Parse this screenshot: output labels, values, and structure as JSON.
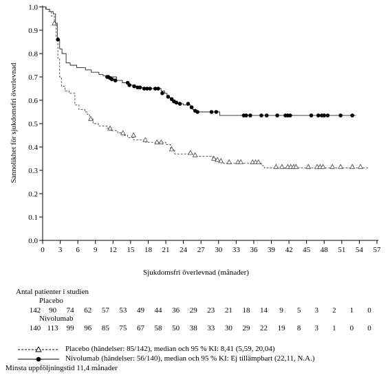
{
  "chart_data": {
    "type": "line",
    "title": "",
    "xlabel": "Sjukdomsfri överlevnad (månader)",
    "ylabel": "Sannolikhet för sjukdomsfri överlevnad",
    "xlim": [
      0,
      57
    ],
    "ylim": [
      0.0,
      1.0
    ],
    "xticks": [
      0,
      3,
      6,
      9,
      12,
      15,
      18,
      21,
      24,
      27,
      30,
      33,
      36,
      39,
      42,
      45,
      48,
      51,
      54,
      57
    ],
    "yticks": [
      "0.0",
      "0.1",
      "0.2",
      "0.3",
      "0.4",
      "0.5",
      "0.6",
      "0.7",
      "0.8",
      "0.9",
      "1.0"
    ],
    "series": [
      {
        "name": "Placebo",
        "line_style": "dashed",
        "marker": "open-triangle",
        "steps": [
          [
            0,
            1.0
          ],
          [
            0.5,
            0.99
          ],
          [
            1,
            0.98
          ],
          [
            1.5,
            0.96
          ],
          [
            2,
            0.93
          ],
          [
            2.3,
            0.87
          ],
          [
            2.6,
            0.78
          ],
          [
            2.9,
            0.7
          ],
          [
            3.2,
            0.66
          ],
          [
            3.8,
            0.64
          ],
          [
            4.5,
            0.63
          ],
          [
            5.5,
            0.58
          ],
          [
            6.2,
            0.56
          ],
          [
            7.2,
            0.55
          ],
          [
            7.6,
            0.54
          ],
          [
            8.0,
            0.52
          ],
          [
            8.6,
            0.5
          ],
          [
            9.5,
            0.49
          ],
          [
            11.0,
            0.48
          ],
          [
            11.6,
            0.47
          ],
          [
            12.8,
            0.46
          ],
          [
            13.6,
            0.45
          ],
          [
            14.5,
            0.44
          ],
          [
            15.5,
            0.43
          ],
          [
            16.5,
            0.43
          ],
          [
            17.6,
            0.42
          ],
          [
            19.0,
            0.42
          ],
          [
            21.0,
            0.41
          ],
          [
            21.8,
            0.39
          ],
          [
            22.5,
            0.37
          ],
          [
            25.5,
            0.37
          ],
          [
            26.0,
            0.36
          ],
          [
            29.0,
            0.35
          ],
          [
            29.8,
            0.34
          ],
          [
            30.5,
            0.33
          ],
          [
            37.3,
            0.32
          ],
          [
            37.8,
            0.31
          ],
          [
            55.5,
            0.31
          ]
        ],
        "censored": [
          [
            2.0,
            0.93
          ],
          [
            8.2,
            0.52
          ],
          [
            11.5,
            0.48
          ],
          [
            13.7,
            0.46
          ],
          [
            15.5,
            0.45
          ],
          [
            17.5,
            0.43
          ],
          [
            19.5,
            0.42
          ],
          [
            20.2,
            0.42
          ],
          [
            22.0,
            0.39
          ],
          [
            25.2,
            0.375
          ],
          [
            26.0,
            0.365
          ],
          [
            29.2,
            0.35
          ],
          [
            29.8,
            0.345
          ],
          [
            30.4,
            0.34
          ],
          [
            31.8,
            0.335
          ],
          [
            33.3,
            0.335
          ],
          [
            33.8,
            0.335
          ],
          [
            35.8,
            0.335
          ],
          [
            36.3,
            0.335
          ],
          [
            36.8,
            0.335
          ],
          [
            39.8,
            0.315
          ],
          [
            40.8,
            0.315
          ],
          [
            41.8,
            0.315
          ],
          [
            42.3,
            0.315
          ],
          [
            42.8,
            0.315
          ],
          [
            43.2,
            0.315
          ],
          [
            45.3,
            0.315
          ],
          [
            46.8,
            0.315
          ],
          [
            47.3,
            0.315
          ],
          [
            47.8,
            0.315
          ],
          [
            49.4,
            0.315
          ],
          [
            50.8,
            0.315
          ],
          [
            52.8,
            0.315
          ],
          [
            54.2,
            0.315
          ]
        ]
      },
      {
        "name": "Nivolumab",
        "line_style": "solid",
        "marker": "filled-circle",
        "steps": [
          [
            0,
            1.0
          ],
          [
            0.6,
            0.99
          ],
          [
            1.2,
            0.98
          ],
          [
            1.8,
            0.97
          ],
          [
            2.2,
            0.93
          ],
          [
            2.5,
            0.86
          ],
          [
            2.9,
            0.82
          ],
          [
            3.3,
            0.8
          ],
          [
            4.0,
            0.76
          ],
          [
            4.7,
            0.75
          ],
          [
            5.8,
            0.74
          ],
          [
            6.6,
            0.74
          ],
          [
            7.3,
            0.73
          ],
          [
            8.3,
            0.72
          ],
          [
            9.6,
            0.71
          ],
          [
            10.3,
            0.705
          ],
          [
            11.2,
            0.7
          ],
          [
            12.6,
            0.685
          ],
          [
            13.6,
            0.675
          ],
          [
            14.6,
            0.665
          ],
          [
            15.5,
            0.66
          ],
          [
            16.5,
            0.655
          ],
          [
            17.5,
            0.65
          ],
          [
            18.4,
            0.65
          ],
          [
            20.2,
            0.64
          ],
          [
            20.8,
            0.63
          ],
          [
            21.2,
            0.62
          ],
          [
            21.6,
            0.61
          ],
          [
            22.2,
            0.6
          ],
          [
            22.6,
            0.59
          ],
          [
            23.0,
            0.585
          ],
          [
            24.0,
            0.58
          ],
          [
            25.2,
            0.57
          ],
          [
            25.6,
            0.56
          ],
          [
            26.0,
            0.55
          ],
          [
            30.2,
            0.535
          ],
          [
            53.4,
            0.535
          ]
        ],
        "censored": [
          [
            2.6,
            0.86
          ],
          [
            11.0,
            0.7
          ],
          [
            11.2,
            0.7
          ],
          [
            11.5,
            0.695
          ],
          [
            11.8,
            0.69
          ],
          [
            12.4,
            0.685
          ],
          [
            14.5,
            0.675
          ],
          [
            14.8,
            0.665
          ],
          [
            15.6,
            0.66
          ],
          [
            16.2,
            0.655
          ],
          [
            16.6,
            0.655
          ],
          [
            17.3,
            0.65
          ],
          [
            17.8,
            0.65
          ],
          [
            18.3,
            0.65
          ],
          [
            19.2,
            0.65
          ],
          [
            19.7,
            0.65
          ],
          [
            20.4,
            0.63
          ],
          [
            21.4,
            0.615
          ],
          [
            22.0,
            0.605
          ],
          [
            22.4,
            0.595
          ],
          [
            22.8,
            0.59
          ],
          [
            23.4,
            0.585
          ],
          [
            24.8,
            0.585
          ],
          [
            25.4,
            0.57
          ],
          [
            26.0,
            0.555
          ],
          [
            26.4,
            0.55
          ],
          [
            28.8,
            0.55
          ],
          [
            29.6,
            0.55
          ],
          [
            34.3,
            0.535
          ],
          [
            34.7,
            0.535
          ],
          [
            35.4,
            0.535
          ],
          [
            37.3,
            0.535
          ],
          [
            38.2,
            0.535
          ],
          [
            40.0,
            0.535
          ],
          [
            41.4,
            0.535
          ],
          [
            41.8,
            0.535
          ],
          [
            42.2,
            0.535
          ],
          [
            45.8,
            0.535
          ],
          [
            47.0,
            0.535
          ],
          [
            47.6,
            0.535
          ],
          [
            48.0,
            0.535
          ],
          [
            48.6,
            0.535
          ],
          [
            50.8,
            0.535
          ],
          [
            52.8,
            0.535
          ]
        ]
      }
    ],
    "legend": [
      {
        "marker": "dashed-open-triangle",
        "text": "Placebo (händelser: 85/142), median och 95 % KI: 8,41 (5,59, 20,04)"
      },
      {
        "marker": "solid-filled-circle",
        "text": "Nivolumab (händelser: 56/140), median och 95 % KI: Ej tillämpbart (22,11, N.A.)"
      }
    ],
    "legend_placement": "bottom",
    "grid": false
  },
  "risk_table": {
    "heading": "Antal patienter i studien",
    "groups": [
      {
        "name": "Placebo",
        "values": [
          "142",
          "90",
          "74",
          "62",
          "57",
          "53",
          "49",
          "44",
          "36",
          "29",
          "23",
          "21",
          "18",
          "14",
          "9",
          "5",
          "3",
          "2",
          "1",
          "0"
        ]
      },
      {
        "name": "Nivolumab",
        "values": [
          "140",
          "113",
          "99",
          "96",
          "85",
          "75",
          "67",
          "58",
          "50",
          "38",
          "33",
          "30",
          "29",
          "22",
          "19",
          "8",
          "3",
          "1",
          "0",
          "0"
        ]
      }
    ]
  },
  "footnote": "Minsta uppföljningstid 11,4 månader"
}
